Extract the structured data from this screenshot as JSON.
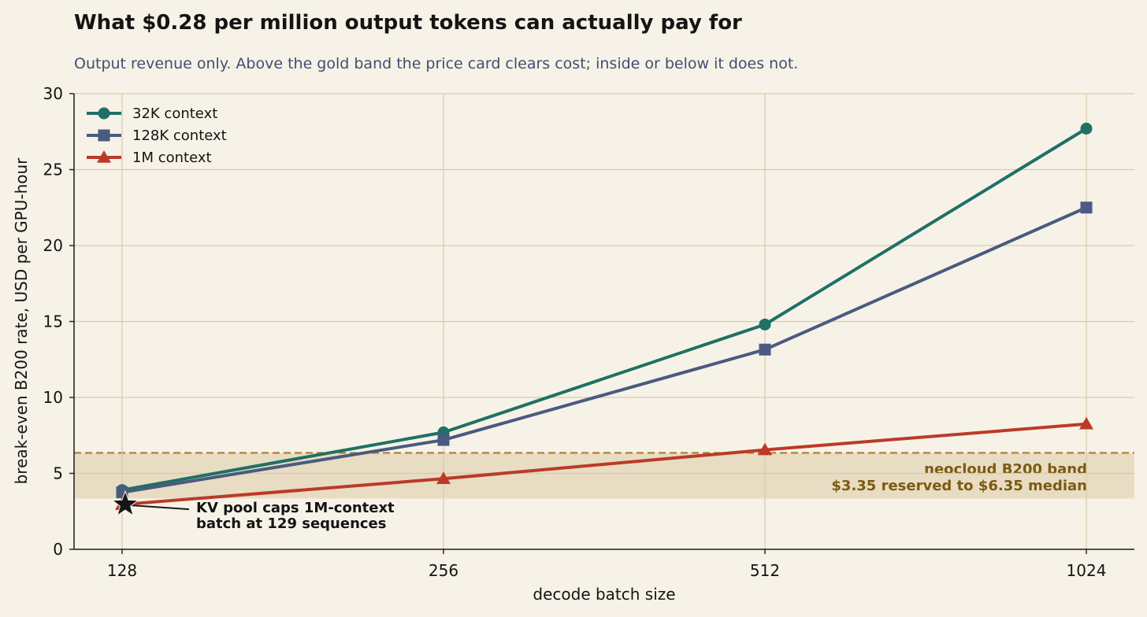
{
  "chart_data": {
    "type": "line",
    "title": "What $0.28 per million output tokens can actually pay for",
    "subtitle": "Output revenue only. Above the gold band the price card clears cost; inside or below it does not.",
    "xlabel": "decode batch size",
    "ylabel": "break-even B200 rate, USD per GPU-hour",
    "x_scale": "log2",
    "categories": [
      "128",
      "256",
      "512",
      "1024"
    ],
    "x": [
      128,
      256,
      512,
      1024
    ],
    "ylim": [
      0,
      30
    ],
    "yticks": [
      "0",
      "5",
      "10",
      "15",
      "20",
      "25",
      "30"
    ],
    "grid": true,
    "legend_position": "top-left",
    "series": [
      {
        "name": "32K context",
        "marker": "circle",
        "color": "#1f7065",
        "values": [
          3.9,
          7.7,
          14.8,
          27.7
        ]
      },
      {
        "name": "128K context",
        "marker": "square",
        "color": "#4a5a80",
        "values": [
          3.75,
          7.2,
          13.15,
          22.5
        ]
      },
      {
        "name": "1M context",
        "marker": "triangle",
        "color": "#bb3a28",
        "values": [
          2.95,
          4.65,
          6.55,
          8.25
        ]
      }
    ],
    "band": {
      "low": 3.35,
      "high": 6.35,
      "color": "#e8dcc3",
      "line_color": "#a87e2f",
      "label_line1": "neocloud B200 band",
      "label_line2": "$3.35 reserved to $6.35 median"
    },
    "annotation": {
      "x": 128,
      "y": 2.95,
      "marker": "star",
      "line1": "KV pool caps 1M-context",
      "line2": "batch at 129 sequences"
    }
  }
}
